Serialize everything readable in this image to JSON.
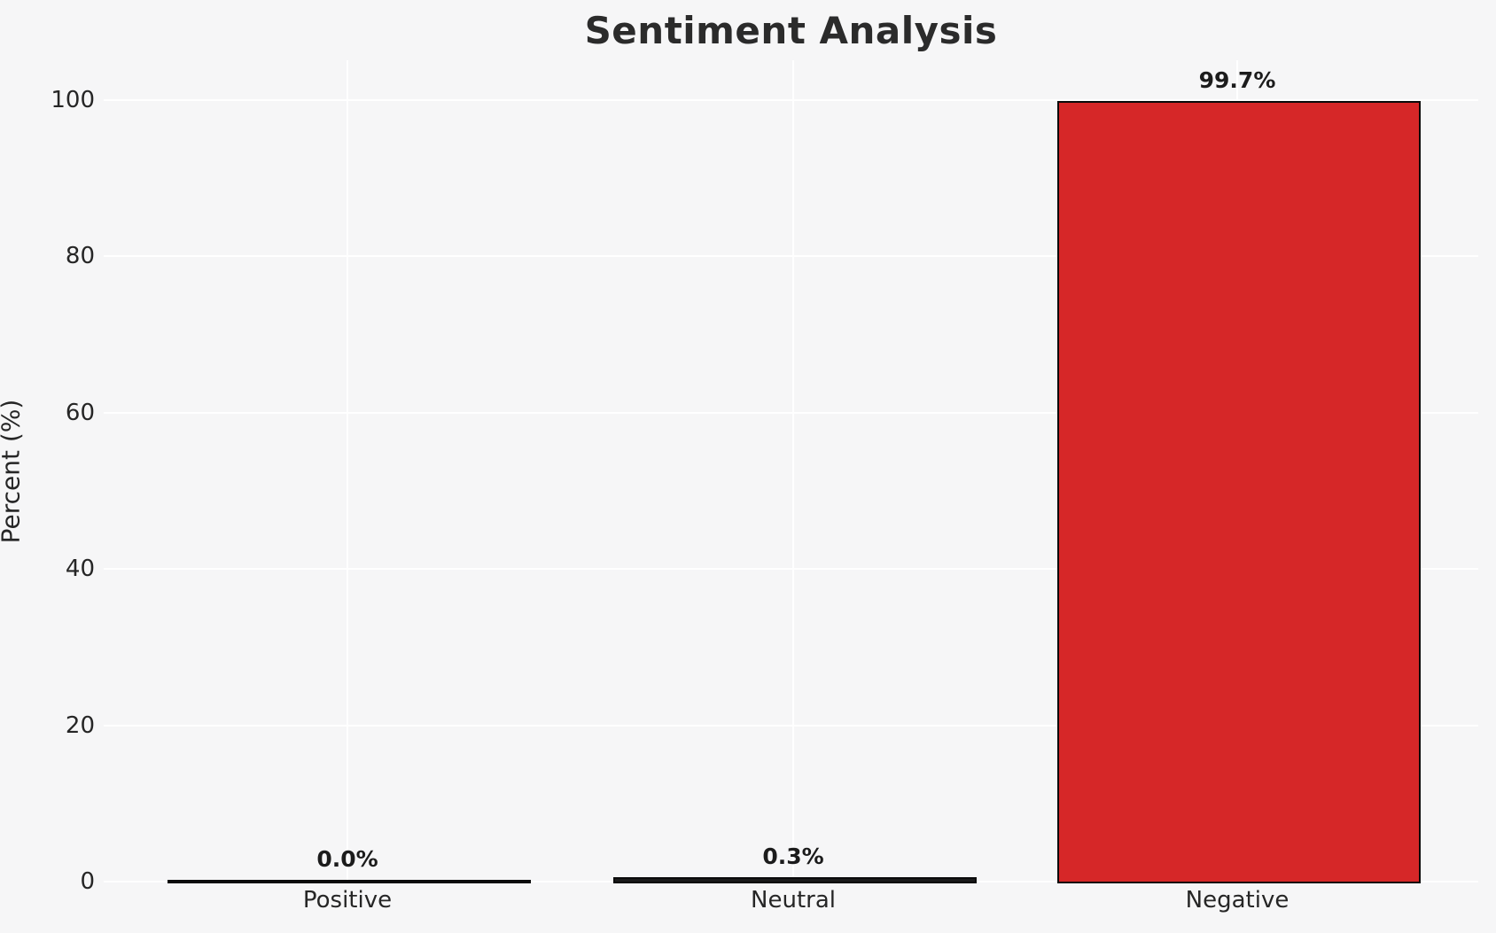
{
  "chart_data": {
    "type": "bar",
    "title": "Sentiment Analysis",
    "ylabel": "Percent (%)",
    "xlabel": "",
    "categories": [
      "Positive",
      "Neutral",
      "Negative"
    ],
    "values": [
      0.0,
      0.3,
      99.7
    ],
    "value_labels": [
      "0.0%",
      "0.3%",
      "99.7%"
    ],
    "yticks": [
      0,
      20,
      40,
      60,
      80,
      100
    ],
    "ylim": [
      0,
      105
    ],
    "grid": true,
    "legend": false,
    "colors": {
      "background": "#f6f6f7",
      "gridline": "#ffffff",
      "bar_fills": [
        "#1a1a1a",
        "#1a1a1a",
        "#d62728"
      ],
      "bar_edge": "#0b0b0b",
      "text": "#262626",
      "title_text": "#2b2b2b"
    }
  }
}
